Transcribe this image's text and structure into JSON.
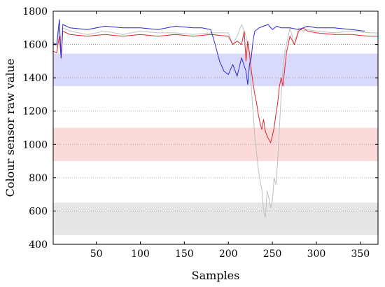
{
  "chart_data": {
    "type": "line",
    "xlabel": "Samples",
    "ylabel": "Colour sensor raw value",
    "xlim": [
      1,
      370
    ],
    "ylim": [
      400,
      1800
    ],
    "xticks": [
      50,
      100,
      150,
      200,
      250,
      300,
      350
    ],
    "yticks": [
      400,
      600,
      800,
      1000,
      1200,
      1400,
      1600,
      1800
    ],
    "grid": "horizontal-dotted",
    "bands": [
      {
        "y0": 1350,
        "y1": 1545,
        "color": "#d9d9fb"
      },
      {
        "y0": 900,
        "y1": 1100,
        "color": "#fbdada"
      },
      {
        "y0": 455,
        "y1": 650,
        "color": "#e6e6e6"
      }
    ],
    "series": [
      {
        "color": "#bfbfbf",
        "x": [
          1,
          5,
          8,
          10,
          12,
          20,
          40,
          60,
          80,
          100,
          120,
          140,
          160,
          180,
          200,
          205,
          210,
          215,
          218,
          220,
          222,
          224,
          226,
          228,
          230,
          232,
          234,
          236,
          238,
          240,
          242,
          244,
          246,
          248,
          250,
          252,
          254,
          256,
          258,
          260,
          262,
          264,
          266,
          268,
          270,
          275,
          280,
          285,
          290,
          300,
          320,
          340,
          360,
          370
        ],
        "y": [
          1600,
          1590,
          1700,
          1510,
          1700,
          1680,
          1660,
          1680,
          1660,
          1680,
          1670,
          1670,
          1660,
          1670,
          1670,
          1600,
          1650,
          1720,
          1680,
          1650,
          1600,
          1500,
          1350,
          1200,
          1050,
          950,
          850,
          780,
          730,
          600,
          560,
          720,
          680,
          620,
          660,
          800,
          760,
          900,
          1100,
          1300,
          1450,
          1550,
          1600,
          1650,
          1700,
          1600,
          1700,
          1680,
          1690,
          1680,
          1670,
          1680,
          1670,
          1670
        ]
      },
      {
        "color": "#e8232b",
        "x": [
          1,
          5,
          8,
          10,
          12,
          20,
          40,
          60,
          80,
          100,
          120,
          140,
          160,
          180,
          200,
          205,
          210,
          215,
          218,
          220,
          222,
          224,
          226,
          228,
          230,
          232,
          234,
          236,
          238,
          240,
          242,
          244,
          246,
          248,
          250,
          252,
          254,
          256,
          258,
          260,
          262,
          264,
          266,
          268,
          270,
          275,
          280,
          285,
          290,
          300,
          320,
          340,
          360,
          370
        ],
        "y": [
          1560,
          1550,
          1650,
          1520,
          1680,
          1660,
          1650,
          1660,
          1650,
          1660,
          1650,
          1660,
          1650,
          1660,
          1650,
          1600,
          1620,
          1600,
          1680,
          1500,
          1620,
          1550,
          1450,
          1370,
          1300,
          1250,
          1180,
          1130,
          1090,
          1150,
          1080,
          1050,
          1030,
          1010,
          1050,
          1100,
          1180,
          1250,
          1350,
          1400,
          1350,
          1450,
          1550,
          1600,
          1650,
          1600,
          1680,
          1700,
          1680,
          1670,
          1660,
          1660,
          1650,
          1650
        ]
      },
      {
        "color": "#2a2ad6",
        "x": [
          1,
          5,
          8,
          10,
          12,
          20,
          40,
          60,
          80,
          100,
          120,
          140,
          160,
          170,
          180,
          185,
          190,
          195,
          200,
          205,
          210,
          215,
          220,
          222,
          224,
          226,
          228,
          230,
          235,
          240,
          245,
          250,
          255,
          260,
          270,
          280,
          290,
          300,
          320,
          340,
          355
        ],
        "y": [
          1610,
          1600,
          1750,
          1520,
          1720,
          1700,
          1690,
          1710,
          1700,
          1700,
          1690,
          1710,
          1700,
          1700,
          1690,
          1600,
          1500,
          1440,
          1420,
          1480,
          1410,
          1520,
          1440,
          1360,
          1480,
          1520,
          1620,
          1680,
          1700,
          1710,
          1720,
          1690,
          1710,
          1700,
          1700,
          1690,
          1710,
          1700,
          1700,
          1690,
          1680
        ]
      }
    ]
  }
}
